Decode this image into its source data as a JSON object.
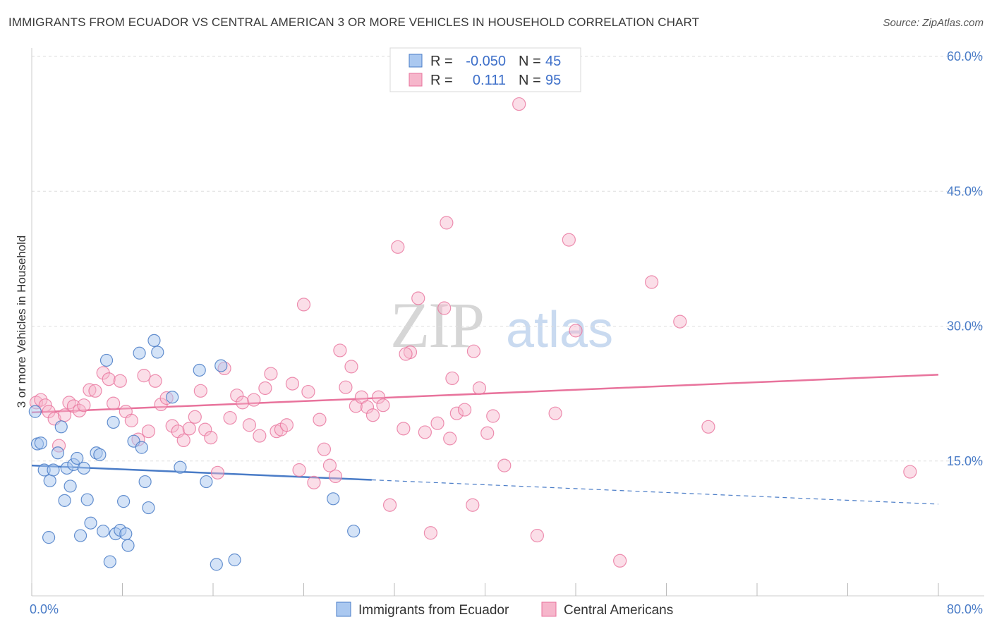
{
  "title": "IMMIGRANTS FROM ECUADOR VS CENTRAL AMERICAN 3 OR MORE VEHICLES IN HOUSEHOLD CORRELATION CHART",
  "source": "Source: ZipAtlas.com",
  "watermark": {
    "zip": "ZIP",
    "atlas": "atlas"
  },
  "colors": {
    "blue": "#4a7cc7",
    "blue_fill": "#aac8f0",
    "pink": "#e8739c",
    "pink_fill": "#f6b6cb"
  },
  "chart_data": {
    "type": "scatter",
    "xlabel": "",
    "ylabel": "3 or more Vehicles in Household",
    "xlim": [
      0,
      80
    ],
    "ylim": [
      0,
      60
    ],
    "x_tick_labels": [
      "0.0%",
      "80.0%"
    ],
    "y_ticks": [
      15,
      30,
      45,
      60
    ],
    "y_tick_labels": [
      "15.0%",
      "30.0%",
      "45.0%",
      "60.0%"
    ],
    "grid": true,
    "legend_top": [
      {
        "r_label": "R = ",
        "r_value": "-0.050",
        "n_label": "N = ",
        "n_value": "45"
      },
      {
        "r_label": "R = ",
        "r_value": "0.111",
        "n_label": "N = ",
        "n_value": "95"
      }
    ],
    "series": [
      {
        "name": "Immigrants from Ecuador",
        "color": "#4a7cc7",
        "trend": {
          "x0": 0,
          "y0": 14.5,
          "x1": 30,
          "y1": 12.9,
          "dash_to_x": 80,
          "dash_to_y": 10.2
        },
        "points": [
          [
            0.3,
            20.5
          ],
          [
            0.5,
            16.9
          ],
          [
            0.8,
            17.0
          ],
          [
            1.1,
            14.0
          ],
          [
            1.5,
            6.5
          ],
          [
            1.6,
            12.8
          ],
          [
            1.9,
            14.0
          ],
          [
            2.3,
            15.9
          ],
          [
            2.6,
            18.8
          ],
          [
            2.9,
            10.6
          ],
          [
            3.1,
            14.2
          ],
          [
            3.4,
            12.2
          ],
          [
            3.7,
            14.6
          ],
          [
            4.0,
            15.3
          ],
          [
            4.3,
            6.7
          ],
          [
            4.6,
            14.2
          ],
          [
            4.9,
            10.7
          ],
          [
            5.2,
            8.1
          ],
          [
            5.7,
            15.9
          ],
          [
            6.0,
            15.7
          ],
          [
            6.3,
            7.2
          ],
          [
            6.6,
            26.2
          ],
          [
            6.9,
            3.8
          ],
          [
            7.2,
            19.3
          ],
          [
            7.4,
            6.9
          ],
          [
            7.8,
            7.3
          ],
          [
            8.1,
            10.5
          ],
          [
            8.3,
            6.9
          ],
          [
            8.5,
            5.6
          ],
          [
            9.0,
            17.2
          ],
          [
            9.5,
            27.0
          ],
          [
            9.7,
            16.5
          ],
          [
            10.0,
            12.7
          ],
          [
            10.3,
            9.8
          ],
          [
            10.8,
            28.4
          ],
          [
            11.1,
            27.1
          ],
          [
            12.4,
            22.1
          ],
          [
            13.1,
            14.3
          ],
          [
            14.8,
            25.1
          ],
          [
            15.4,
            12.7
          ],
          [
            16.3,
            3.5
          ],
          [
            16.7,
            25.6
          ],
          [
            17.9,
            4.0
          ],
          [
            26.6,
            10.8
          ],
          [
            28.4,
            7.2
          ]
        ]
      },
      {
        "name": "Central Americans",
        "color": "#e8739c",
        "trend": {
          "x0": 0,
          "y0": 20.4,
          "x1": 80,
          "y1": 24.6
        },
        "points": [
          [
            0.4,
            21.5
          ],
          [
            0.8,
            21.8
          ],
          [
            1.2,
            21.2
          ],
          [
            1.5,
            20.5
          ],
          [
            2.0,
            19.7
          ],
          [
            2.4,
            16.7
          ],
          [
            2.9,
            20.1
          ],
          [
            3.3,
            21.5
          ],
          [
            3.7,
            21.1
          ],
          [
            4.2,
            20.6
          ],
          [
            4.6,
            21.2
          ],
          [
            5.1,
            22.9
          ],
          [
            5.6,
            22.8
          ],
          [
            6.3,
            24.8
          ],
          [
            6.8,
            24.1
          ],
          [
            7.2,
            21.4
          ],
          [
            7.8,
            23.9
          ],
          [
            8.3,
            20.5
          ],
          [
            8.8,
            19.5
          ],
          [
            9.4,
            17.4
          ],
          [
            9.9,
            24.5
          ],
          [
            10.3,
            18.3
          ],
          [
            10.9,
            23.9
          ],
          [
            11.4,
            21.3
          ],
          [
            11.9,
            22.0
          ],
          [
            12.4,
            18.9
          ],
          [
            12.9,
            18.3
          ],
          [
            13.4,
            17.3
          ],
          [
            13.9,
            18.6
          ],
          [
            14.4,
            19.9
          ],
          [
            14.9,
            22.8
          ],
          [
            15.3,
            18.5
          ],
          [
            15.8,
            17.6
          ],
          [
            16.4,
            13.7
          ],
          [
            17.0,
            25.3
          ],
          [
            17.5,
            19.8
          ],
          [
            18.1,
            22.3
          ],
          [
            18.6,
            21.5
          ],
          [
            19.2,
            19.0
          ],
          [
            19.6,
            21.8
          ],
          [
            20.1,
            17.8
          ],
          [
            20.6,
            23.1
          ],
          [
            21.1,
            24.7
          ],
          [
            21.6,
            18.3
          ],
          [
            22.0,
            18.5
          ],
          [
            22.5,
            19.0
          ],
          [
            23.0,
            23.6
          ],
          [
            23.6,
            14.0
          ],
          [
            24.0,
            32.4
          ],
          [
            24.4,
            22.7
          ],
          [
            24.9,
            12.6
          ],
          [
            25.4,
            19.6
          ],
          [
            25.8,
            16.3
          ],
          [
            26.3,
            14.5
          ],
          [
            26.8,
            13.3
          ],
          [
            27.2,
            27.3
          ],
          [
            27.7,
            23.2
          ],
          [
            28.2,
            25.5
          ],
          [
            28.6,
            21.1
          ],
          [
            29.1,
            22.1
          ],
          [
            29.6,
            21.0
          ],
          [
            30.1,
            20.1
          ],
          [
            30.6,
            22.1
          ],
          [
            31.0,
            21.2
          ],
          [
            31.6,
            10.1
          ],
          [
            32.3,
            38.8
          ],
          [
            32.8,
            18.6
          ],
          [
            33.4,
            27.1
          ],
          [
            34.1,
            33.1
          ],
          [
            34.7,
            18.2
          ],
          [
            35.2,
            7.0
          ],
          [
            35.8,
            19.2
          ],
          [
            36.4,
            32.0
          ],
          [
            36.9,
            17.5
          ],
          [
            37.5,
            20.3
          ],
          [
            38.2,
            20.7
          ],
          [
            38.9,
            10.1
          ],
          [
            39.5,
            23.1
          ],
          [
            40.2,
            18.1
          ],
          [
            40.7,
            20.0
          ],
          [
            41.7,
            14.5
          ],
          [
            44.6,
            6.7
          ],
          [
            46.2,
            20.3
          ],
          [
            47.4,
            39.6
          ],
          [
            48.0,
            29.5
          ],
          [
            51.9,
            3.9
          ],
          [
            54.7,
            34.9
          ],
          [
            57.2,
            30.5
          ],
          [
            59.7,
            18.8
          ],
          [
            77.5,
            13.8
          ],
          [
            36.6,
            41.5
          ],
          [
            39.0,
            27.2
          ],
          [
            37.1,
            24.2
          ],
          [
            33.0,
            26.9
          ],
          [
            43.0,
            54.7
          ]
        ]
      }
    ]
  },
  "legend_bottom": {
    "items": [
      {
        "label": "Immigrants from Ecuador"
      },
      {
        "label": "Central Americans"
      }
    ]
  }
}
